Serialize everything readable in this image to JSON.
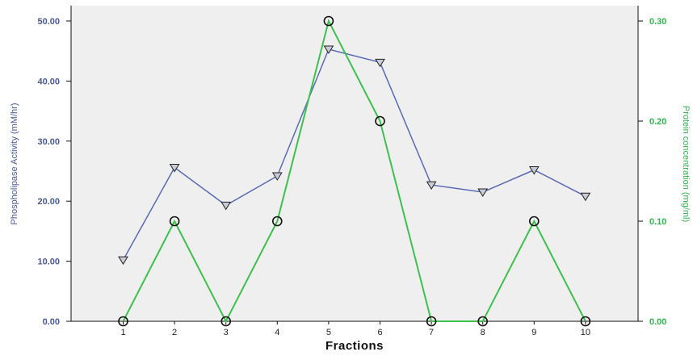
{
  "chart_data": {
    "type": "line",
    "xlabel": "Fractions",
    "ylabel_left": "Phospholipase Activity (mM/hr)",
    "ylabel_right": "Protein concentration (mg/ml)",
    "categories": [
      "1",
      "2",
      "3",
      "4",
      "5",
      "6",
      "7",
      "8",
      "9",
      "10"
    ],
    "y_left_range": [
      0,
      50
    ],
    "y_left_ticks": [
      "0.00",
      "10.00",
      "20.00",
      "30.00",
      "40.00",
      "50.00"
    ],
    "y_right_range": [
      0,
      0.3
    ],
    "y_right_ticks": [
      "0.00",
      "0.10",
      "0.20",
      "0.30"
    ],
    "grid": false,
    "series": [
      {
        "axis": "left",
        "marker": "triangle-down",
        "color": "#5a6ab4",
        "values": [
          10.2,
          25.6,
          19.3,
          24.2,
          45.3,
          43.1,
          22.7,
          21.5,
          25.2,
          20.8
        ]
      },
      {
        "axis": "right",
        "marker": "circle",
        "color": "#3cc04e",
        "values": [
          0.0,
          0.1,
          0.0,
          0.1,
          0.3,
          0.2,
          0.0,
          0.0,
          0.1,
          0.0
        ]
      }
    ]
  }
}
